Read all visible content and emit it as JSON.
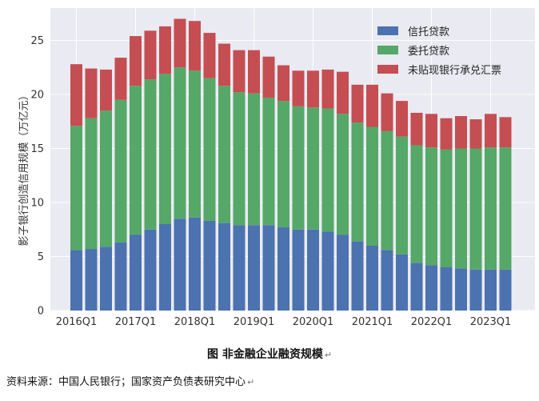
{
  "chart_data": {
    "type": "bar",
    "stacked": true,
    "ylabel": "影子银行创造信用规模（万亿元）",
    "ylim": [
      0,
      28
    ],
    "yticks": [
      0,
      5,
      10,
      15,
      20,
      25
    ],
    "xtick_labels": [
      "2016Q1",
      "2017Q1",
      "2018Q1",
      "2019Q1",
      "2020Q1",
      "2021Q1",
      "2022Q1",
      "2023Q1"
    ],
    "xtick_indices": [
      0,
      4,
      8,
      12,
      16,
      20,
      24,
      28
    ],
    "n_bars": 30,
    "grid": true,
    "legend_position": "top-right",
    "series": [
      {
        "name": "信托贷款",
        "color": "#4c72b0",
        "values": [
          5.6,
          5.7,
          5.9,
          6.3,
          7.0,
          7.5,
          8.0,
          8.5,
          8.6,
          8.3,
          8.1,
          7.9,
          7.9,
          7.9,
          7.7,
          7.5,
          7.5,
          7.3,
          7.0,
          6.4,
          6.0,
          5.6,
          5.2,
          4.4,
          4.2,
          4.0,
          3.9,
          3.8,
          3.8,
          3.8
        ]
      },
      {
        "name": "委托贷款",
        "color": "#55a868",
        "values": [
          11.5,
          12.1,
          12.6,
          13.2,
          13.8,
          13.9,
          13.9,
          14.0,
          13.6,
          13.2,
          12.7,
          12.3,
          12.2,
          11.8,
          11.7,
          11.4,
          11.3,
          11.4,
          11.2,
          11.0,
          11.0,
          11.0,
          10.9,
          10.9,
          10.9,
          10.9,
          11.1,
          11.2,
          11.3,
          11.3
        ]
      },
      {
        "name": "未贴现银行承兑汇票",
        "color": "#c44e52",
        "values": [
          5.7,
          4.6,
          3.8,
          3.9,
          4.6,
          4.5,
          4.4,
          4.5,
          4.6,
          4.2,
          3.9,
          3.9,
          4.0,
          3.8,
          3.3,
          3.3,
          3.4,
          3.6,
          3.9,
          3.5,
          3.9,
          3.5,
          3.3,
          3.0,
          3.1,
          2.9,
          3.0,
          2.7,
          3.1,
          2.8
        ]
      }
    ]
  },
  "caption": {
    "title": "图  非金融企业融资规模",
    "source": "资料来源：中国人民银行；国家资产负债表研究中心",
    "para_mark": "↵"
  }
}
